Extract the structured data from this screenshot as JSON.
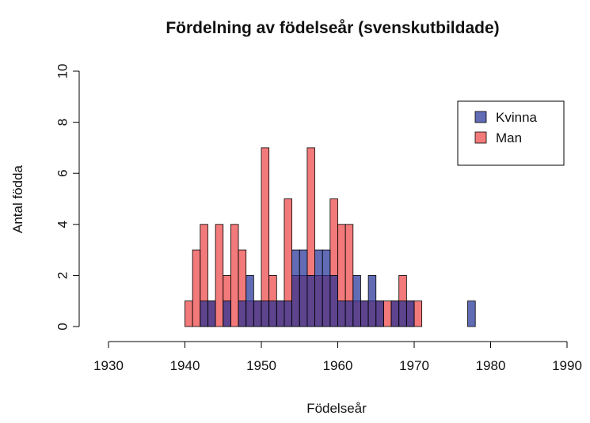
{
  "chart_data": {
    "type": "histogram",
    "title": "Fördelning av födelseår (svenskutbildade)",
    "xlabel": "Födelseår",
    "ylabel": "Antal födda",
    "bins": [
      1930,
      1931,
      1932,
      1933,
      1934,
      1935,
      1936,
      1937,
      1938,
      1939,
      1940,
      1941,
      1942,
      1943,
      1944,
      1945,
      1946,
      1947,
      1948,
      1949,
      1950,
      1951,
      1952,
      1953,
      1954,
      1955,
      1956,
      1957,
      1958,
      1959,
      1960,
      1961,
      1962,
      1963,
      1964,
      1965,
      1966,
      1967,
      1968,
      1969,
      1970,
      1971,
      1972,
      1973,
      1974,
      1975,
      1976,
      1977,
      1978,
      1979,
      1980,
      1981,
      1982,
      1983,
      1984,
      1985,
      1986,
      1987,
      1988,
      1989,
      1990
    ],
    "series": [
      {
        "name": "Kvinna",
        "color": "rgba(30,45,150,0.7)",
        "values": [
          0,
          0,
          0,
          0,
          0,
          0,
          0,
          0,
          0,
          0,
          0,
          0,
          1,
          1,
          0,
          1,
          0,
          1,
          2,
          1,
          1,
          1,
          1,
          1,
          3,
          3,
          2,
          3,
          3,
          2,
          1,
          1,
          2,
          1,
          2,
          1,
          0,
          1,
          1,
          1,
          0,
          0,
          0,
          0,
          0,
          0,
          0,
          1,
          0,
          0,
          0,
          0,
          0,
          0,
          0,
          0,
          0,
          0,
          0,
          0
        ]
      },
      {
        "name": "Man",
        "color": "rgba(235,50,50,0.65)",
        "values": [
          0,
          0,
          0,
          0,
          0,
          0,
          0,
          0,
          0,
          0,
          1,
          3,
          4,
          1,
          4,
          2,
          4,
          3,
          1,
          1,
          7,
          2,
          1,
          5,
          2,
          2,
          7,
          2,
          2,
          5,
          4,
          4,
          1,
          1,
          1,
          1,
          1,
          1,
          2,
          1,
          1,
          0,
          0,
          0,
          0,
          0,
          0,
          0,
          0,
          0,
          0,
          0,
          0,
          0,
          0,
          0,
          0,
          0,
          0,
          0
        ]
      }
    ],
    "xlim": [
      1930,
      1990
    ],
    "xticks": [
      1930,
      1940,
      1950,
      1960,
      1970,
      1980,
      1990
    ],
    "ylim": [
      0,
      10
    ],
    "yticks": [
      0,
      2,
      4,
      6,
      8,
      10
    ],
    "legend": "topright"
  }
}
